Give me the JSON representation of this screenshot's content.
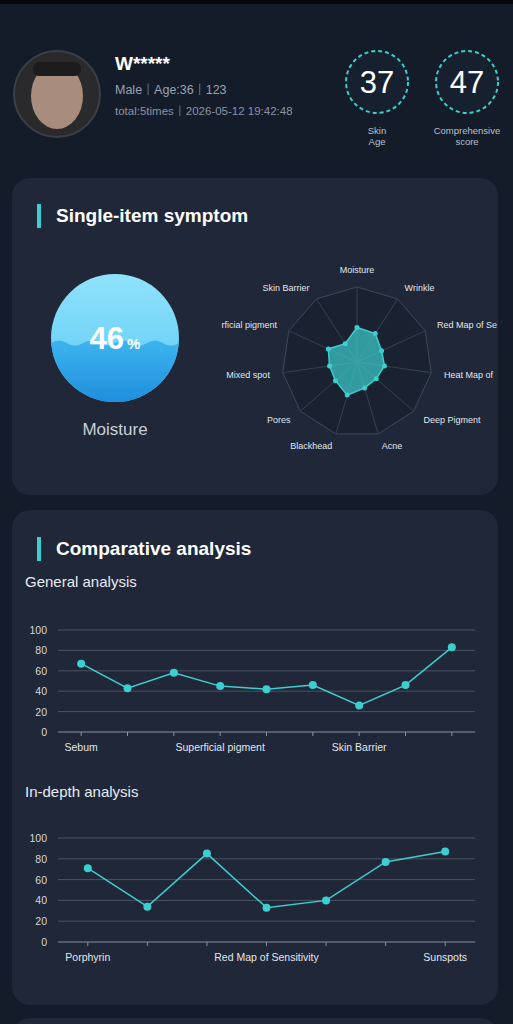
{
  "header": {
    "name": "W*****",
    "gender": "Male",
    "age": "Age:36",
    "id": "123",
    "total": "total:5times",
    "time": "2026-05-12 19:42:48",
    "scores": [
      {
        "value": 37,
        "label": "Skin Age"
      },
      {
        "value": 47,
        "label": "Comprehensive score"
      }
    ]
  },
  "sections": {
    "single_item": "Single-item symptom",
    "comparative": "Comparative analysis"
  },
  "gauge": {
    "value": 46,
    "unit": "%",
    "label": "Moisture"
  },
  "chart_data": [
    {
      "type": "radar",
      "categories": [
        "Moisture",
        "Wrinkle",
        "Red Map of Se",
        "Heat Map of",
        "Deep Pigment",
        "Acne",
        "Blackhead",
        "Pores",
        "Mixed spot",
        "rficial pigment",
        "Skin Barrier"
      ],
      "values": [
        46,
        45,
        36,
        37,
        34,
        36,
        46,
        38,
        37,
        42,
        29
      ],
      "ylim": [
        0,
        100
      ],
      "yticks": [
        25,
        50,
        75,
        100
      ],
      "tick_labels": false,
      "color": "#3ccfcf",
      "marker": "circle"
    },
    {
      "type": "line",
      "title": "General analysis",
      "categories": [
        "Sebum",
        null,
        null,
        "Superficial pigment",
        null,
        null,
        "Skin Barrier",
        null,
        null
      ],
      "values": [
        67,
        43,
        58,
        45,
        42,
        46,
        26,
        46,
        83
      ],
      "ylim": [
        0,
        100
      ],
      "yticks": [
        0,
        20,
        40,
        60,
        80,
        100
      ],
      "grid": true,
      "color": "#3ccfcf",
      "marker": "circle"
    },
    {
      "type": "line",
      "title": "In-depth analysis",
      "categories": [
        "Porphyrin",
        null,
        null,
        "Red Map of Sensitivity",
        null,
        null,
        "Sunspots"
      ],
      "values": [
        71,
        34,
        85,
        33,
        40,
        77,
        87
      ],
      "ylim": [
        0,
        100
      ],
      "yticks": [
        0,
        20,
        40,
        60,
        80,
        100
      ],
      "grid": true,
      "color": "#3ccfcf",
      "marker": "circle"
    }
  ]
}
